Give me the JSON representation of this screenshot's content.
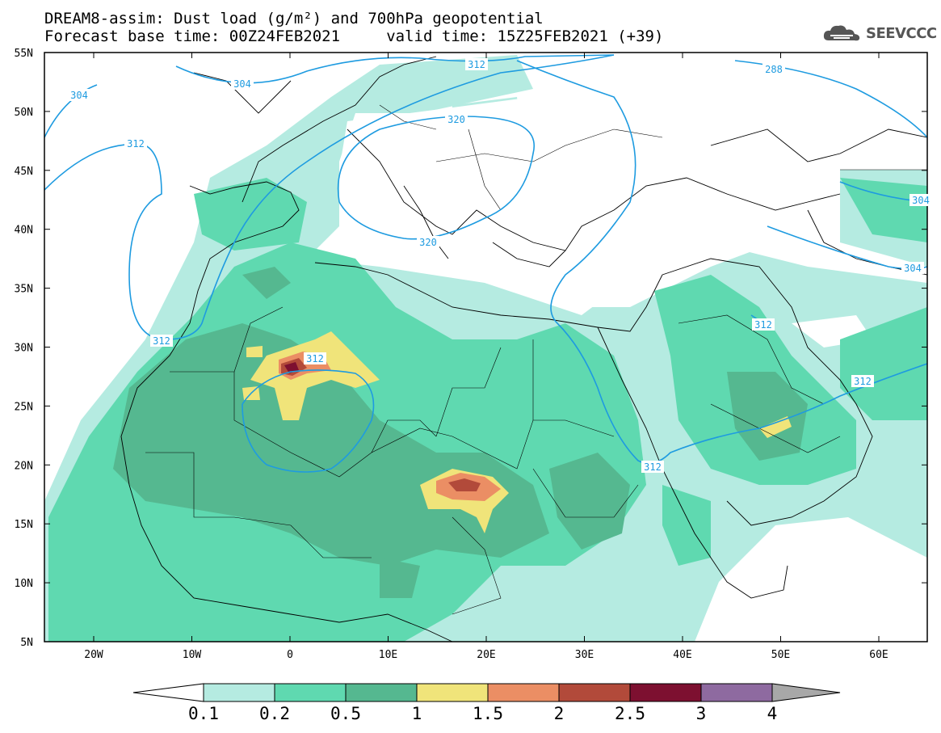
{
  "title_line1": "DREAM8-assim: Dust load (g/m²) and 700hPa geopotential",
  "title_line2": "Forecast base time: 00Z24FEB2021     valid time: 15Z25FEB2021 (+39)",
  "logo_text": "SEEVCCC",
  "latitude_labels": [
    "55N",
    "50N",
    "45N",
    "40N",
    "35N",
    "30N",
    "25N",
    "20N",
    "15N",
    "10N",
    "5N"
  ],
  "longitude_labels": [
    "20W",
    "10W",
    "0",
    "10E",
    "20E",
    "30E",
    "40E",
    "50E",
    "60E"
  ],
  "contour_labels": [
    "312",
    "304",
    "320",
    "304",
    "312",
    "312",
    "312",
    "320",
    "312",
    "312",
    "304",
    "312",
    "288",
    "304"
  ],
  "colorbar": {
    "ticks": [
      "0.1",
      "0.2",
      "0.5",
      "1",
      "1.5",
      "2",
      "2.5",
      "3",
      "4"
    ],
    "colors": [
      "#b5ebe1",
      "#5fd9b0",
      "#55b890",
      "#f0e47a",
      "#eb8e64",
      "#b24a3a",
      "#7d1030",
      "#8e6aa0",
      "#a8a8a8"
    ]
  },
  "colors": {
    "dust_light": "#b5ebe1",
    "dust_mid": "#5fd9b0",
    "dust_dark": "#55b890",
    "dust_yellow": "#f0e47a",
    "dust_orange": "#eb8e64",
    "dust_red": "#b24a3a",
    "dust_maroon": "#7d1030",
    "contour": "#1e9be0"
  }
}
